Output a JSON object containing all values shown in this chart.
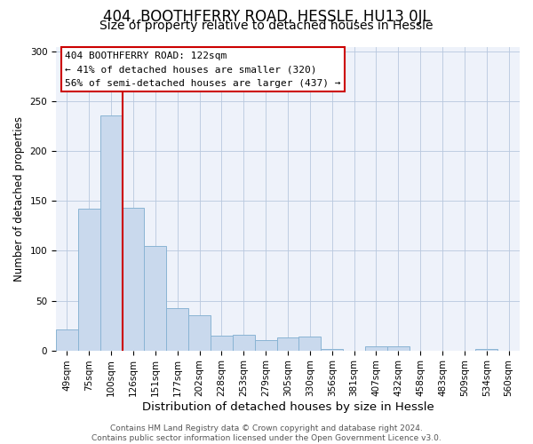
{
  "title": "404, BOOTHFERRY ROAD, HESSLE, HU13 0JL",
  "subtitle": "Size of property relative to detached houses in Hessle",
  "xlabel": "Distribution of detached houses by size in Hessle",
  "ylabel": "Number of detached properties",
  "categories": [
    "49sqm",
    "75sqm",
    "100sqm",
    "126sqm",
    "151sqm",
    "177sqm",
    "202sqm",
    "228sqm",
    "253sqm",
    "279sqm",
    "305sqm",
    "330sqm",
    "356sqm",
    "381sqm",
    "407sqm",
    "432sqm",
    "458sqm",
    "483sqm",
    "509sqm",
    "534sqm",
    "560sqm"
  ],
  "values": [
    21,
    142,
    236,
    143,
    105,
    42,
    35,
    15,
    16,
    10,
    13,
    14,
    1,
    0,
    4,
    4,
    0,
    0,
    0,
    1,
    0
  ],
  "bar_color": "#c9d9ed",
  "bar_edge_color": "#8ab4d4",
  "vline_color": "#cc0000",
  "vline_x_index": 2.5,
  "annotation_lines": [
    "404 BOOTHFERRY ROAD: 122sqm",
    "← 41% of detached houses are smaller (320)",
    "56% of semi-detached houses are larger (437) →"
  ],
  "annotation_box_color": "#ffffff",
  "annotation_box_edge": "#cc0000",
  "ylim": [
    0,
    305
  ],
  "yticks": [
    0,
    50,
    100,
    150,
    200,
    250,
    300
  ],
  "footer_lines": [
    "Contains HM Land Registry data © Crown copyright and database right 2024.",
    "Contains public sector information licensed under the Open Government Licence v3.0."
  ],
  "title_fontsize": 12,
  "subtitle_fontsize": 10,
  "xlabel_fontsize": 9.5,
  "ylabel_fontsize": 8.5,
  "tick_fontsize": 7.5,
  "annotation_fontsize": 8,
  "footer_fontsize": 6.5,
  "bg_color": "#eef2fa"
}
